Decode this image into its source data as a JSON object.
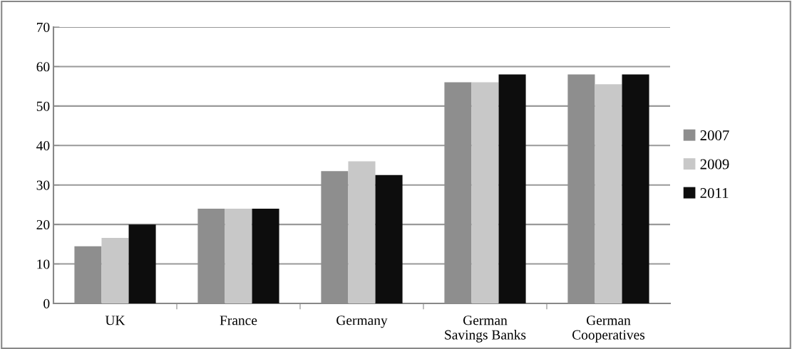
{
  "chart_data": {
    "type": "bar",
    "categories": [
      "UK",
      "France",
      "Germany",
      "German\nSavings Banks",
      "German\nCooperatives"
    ],
    "series": [
      {
        "name": "2007",
        "color": "#8e8e8e",
        "values": [
          14.5,
          24,
          33.5,
          56,
          58
        ]
      },
      {
        "name": "2009",
        "color": "#c8c8c8",
        "values": [
          16.6,
          24,
          36,
          56,
          55.5
        ]
      },
      {
        "name": "2011",
        "color": "#0d0d0d",
        "values": [
          20,
          24,
          32.5,
          58,
          58
        ]
      }
    ],
    "ylim": [
      0,
      70
    ],
    "yticks": [
      0,
      10,
      20,
      30,
      40,
      50,
      60,
      70
    ],
    "grid": "y",
    "legend": "right"
  }
}
